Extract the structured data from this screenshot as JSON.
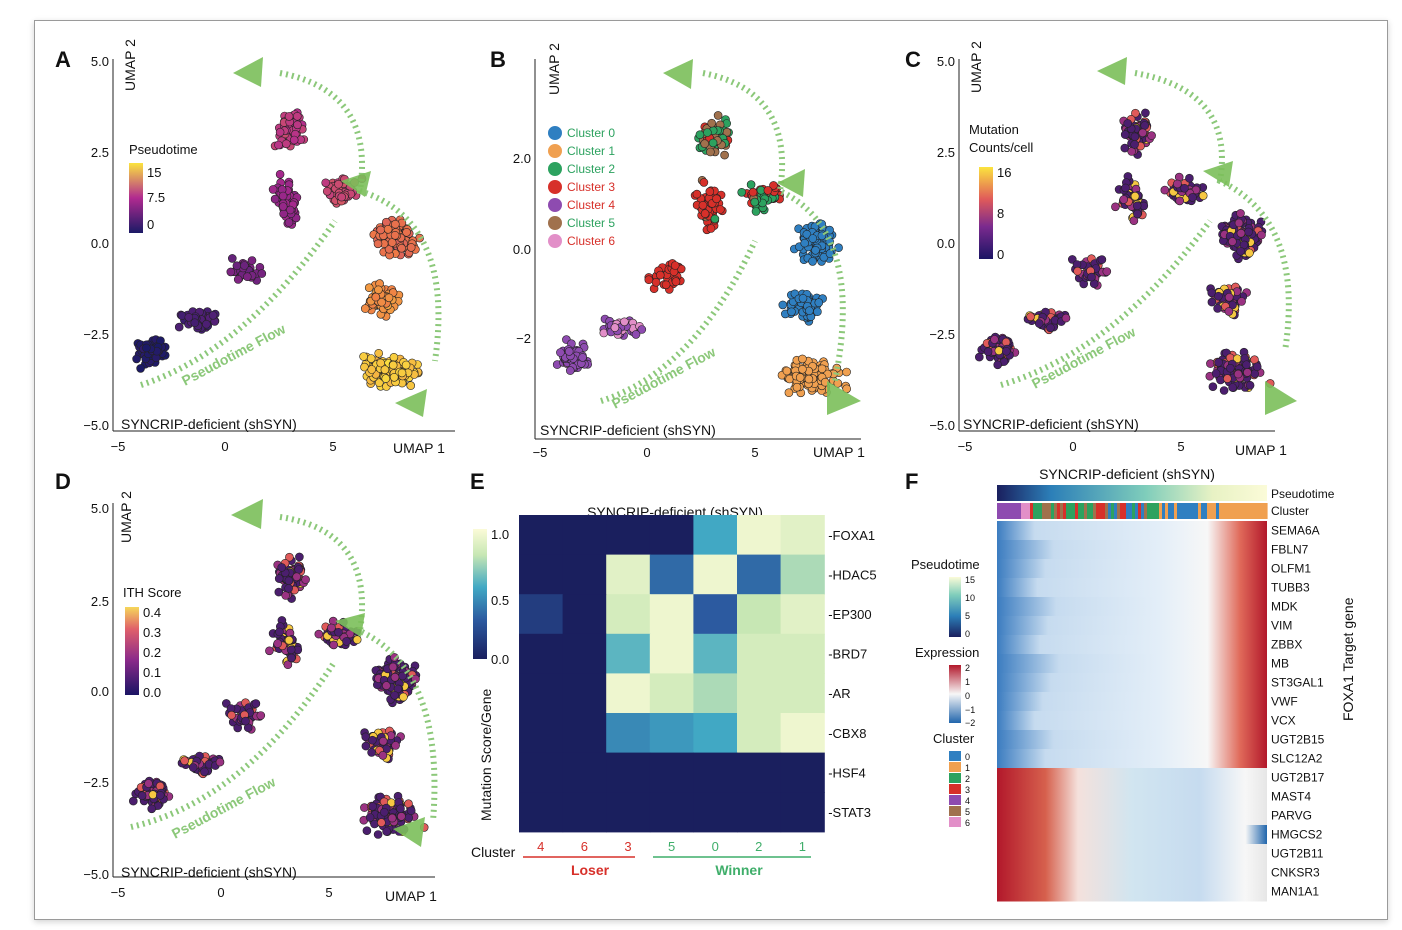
{
  "chart_data": [
    {
      "panel": "A",
      "type": "scatter",
      "xlabel": "UMAP 1",
      "ylabel": "UMAP 2",
      "x_ticks": [
        "−5",
        "0",
        "5"
      ],
      "y_ticks": [
        "5.0",
        "2.5",
        "0.0",
        "−2.5",
        "−5.0"
      ],
      "legend_title": "Pseudotime",
      "legend_ticks": [
        "15",
        "7.5",
        "0"
      ],
      "flow_label": "Pseudotime Flow",
      "caption": "SYNCRIP-deficient (shSYN)"
    },
    {
      "panel": "B",
      "type": "scatter",
      "xlabel": "UMAP 1",
      "ylabel": "UMAP 2",
      "x_ticks": [
        "−5",
        "0",
        "5"
      ],
      "y_ticks": [
        "2.0",
        "0.0",
        "−2"
      ],
      "legend": [
        {
          "label": "Cluster 0",
          "color": "#2f7fc1"
        },
        {
          "label": "Cluster 1",
          "color": "#f0a050"
        },
        {
          "label": "Cluster 2",
          "color": "#2ca25f"
        },
        {
          "label": "Cluster 3",
          "color": "#d7302a"
        },
        {
          "label": "Cluster 4",
          "color": "#8e4bb0"
        },
        {
          "label": "Cluster 5",
          "color": "#a0714d"
        },
        {
          "label": "Cluster 6",
          "color": "#e28fc8"
        }
      ],
      "flow_label": "Pseudotime Flow",
      "caption": "SYNCRIP-deficient (shSYN)"
    },
    {
      "panel": "C",
      "type": "scatter",
      "xlabel": "UMAP 1",
      "ylabel": "UMAP 2",
      "x_ticks": [
        "−5",
        "0",
        "5"
      ],
      "y_ticks": [
        "5.0",
        "2.5",
        "0.0",
        "−2.5",
        "−5.0"
      ],
      "legend_title": [
        "Mutation",
        "Counts/cell"
      ],
      "legend_ticks": [
        "16",
        "8",
        "0"
      ],
      "flow_label": "Pseudotime Flow",
      "caption": "SYNCRIP-deficient (shSYN)"
    },
    {
      "panel": "D",
      "type": "scatter",
      "xlabel": "UMAP 1",
      "ylabel": "UMAP 2",
      "x_ticks": [
        "−5",
        "0",
        "5"
      ],
      "y_ticks": [
        "5.0",
        "2.5",
        "0.0",
        "−2.5",
        "−5.0"
      ],
      "legend_title": "ITH Score",
      "legend_ticks": [
        "0.4",
        "0.3",
        "0.2",
        "0.1",
        "0.0"
      ],
      "flow_label": "Pseudotime Flow",
      "caption": "SYNCRIP-deficient (shSYN)"
    },
    {
      "panel": "E",
      "type": "heatmap",
      "title": "SYNCRIP-deficient (shSYN)",
      "colorbar_label": "Mutation Score/Gene",
      "colorbar_ticks": [
        "1.0",
        "0.5",
        "0.0"
      ],
      "row_prefix": "-",
      "rows": [
        "FOXA1",
        "HDAC5",
        "EP300",
        "BRD7",
        "AR",
        "CBX8",
        "HSF4",
        "STAT3"
      ],
      "columns_label": "Cluster",
      "columns": [
        "4",
        "6",
        "3",
        "5",
        "0",
        "2",
        "1"
      ],
      "column_groups": [
        {
          "label": "Loser",
          "columns": [
            "4",
            "6",
            "3"
          ],
          "color": "#d7302a"
        },
        {
          "label": "Winner",
          "columns": [
            "5",
            "0",
            "2",
            "1"
          ],
          "color": "#3fae6a"
        }
      ],
      "values": [
        [
          0,
          0,
          0,
          0,
          0.55,
          0.95,
          0.9
        ],
        [
          0,
          0,
          0.9,
          0.35,
          0.95,
          0.35,
          0.75
        ],
        [
          0.15,
          0,
          0.85,
          0.95,
          0.3,
          0.8,
          0.9
        ],
        [
          0,
          0,
          0.6,
          0.95,
          0.6,
          0.85,
          0.85
        ],
        [
          0,
          0,
          0.95,
          0.85,
          0.75,
          0.85,
          0.85
        ],
        [
          0,
          0,
          0.45,
          0.5,
          0.55,
          0.85,
          0.95
        ],
        [
          0,
          0,
          0,
          0,
          0,
          0,
          0
        ],
        [
          0,
          0,
          0,
          0,
          0,
          0,
          0
        ]
      ]
    },
    {
      "panel": "F",
      "type": "heatmap",
      "title": "SYNCRIP-deficient (shSYN)",
      "annotation_rows": [
        "Pseudotime",
        "Cluster"
      ],
      "genes": [
        "SEMA6A",
        "FBLN7",
        "OLFM1",
        "TUBB3",
        "MDK",
        "VIM",
        "ZBBX",
        "MB",
        "ST3GAL1",
        "VWF",
        "VCX",
        "UGT2B15",
        "SLC12A2",
        "UGT2B17",
        "MAST4",
        "PARVG",
        "HMGCS2",
        "UGT2B11",
        "CNKSR3",
        "MAN1A1"
      ],
      "gene_axis_label": "FOXA1 Target gene",
      "legend_pseudotime_title": "Pseudotime",
      "legend_pseudotime_ticks": [
        "15",
        "10",
        "5",
        "0"
      ],
      "legend_expression_title": "Expression",
      "legend_expression_ticks": [
        "2",
        "1",
        "0",
        "−1",
        "−2"
      ],
      "legend_cluster_title": "Cluster",
      "legend_cluster_items": [
        {
          "label": "0",
          "color": "#2f7fc1"
        },
        {
          "label": "1",
          "color": "#f0a050"
        },
        {
          "label": "2",
          "color": "#2ca25f"
        },
        {
          "label": "3",
          "color": "#d7302a"
        },
        {
          "label": "4",
          "color": "#8e4bb0"
        },
        {
          "label": "5",
          "color": "#a0714d"
        },
        {
          "label": "6",
          "color": "#e28fc8"
        }
      ]
    }
  ],
  "panel_labels": [
    "A",
    "B",
    "C",
    "D",
    "E",
    "F"
  ]
}
